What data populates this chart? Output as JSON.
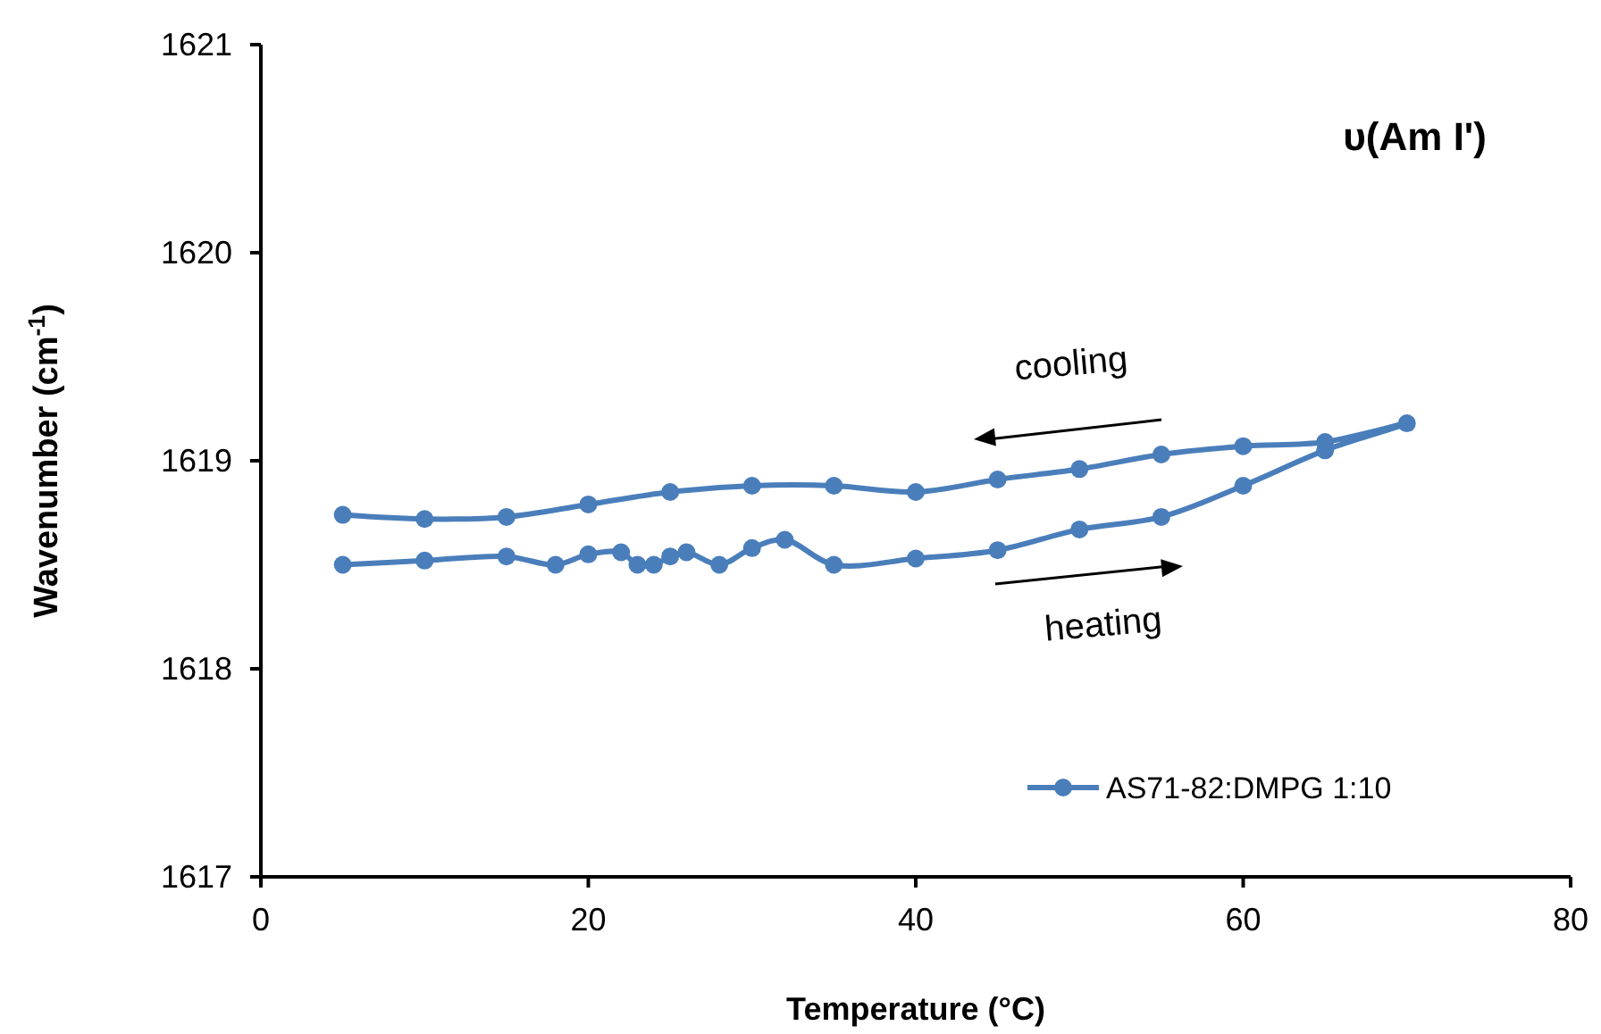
{
  "chart_data": {
    "type": "line",
    "title": "υ(Am I')",
    "xlabel": "Temperature (°C)",
    "ylabel": "Wavenumber (cm$^{-1}$)",
    "xlim": [
      0,
      80
    ],
    "xticks": [
      0,
      20,
      40,
      60,
      80
    ],
    "ylim": [
      1617,
      1621
    ],
    "yticks": [
      1617,
      1618,
      1619,
      1620,
      1621
    ],
    "grid": false,
    "legend": "bottom right",
    "marker": "circle",
    "line_style": "solid",
    "annotations": [
      "cooling",
      "heating"
    ],
    "series": [
      {
        "name": "AS71-82:DMPG 1:10",
        "color": "#4a7ebb",
        "x": [
          5,
          10,
          15,
          18,
          20,
          22,
          23,
          24,
          25,
          26,
          28,
          30,
          32,
          35,
          40,
          45,
          50,
          55,
          60,
          65,
          70,
          65,
          60,
          55,
          50,
          45,
          40,
          35,
          30,
          25,
          20,
          15,
          10,
          5
        ],
        "values": [
          1618.5,
          1618.52,
          1618.54,
          1618.5,
          1618.55,
          1618.56,
          1618.5,
          1618.5,
          1618.54,
          1618.56,
          1618.5,
          1618.58,
          1618.62,
          1618.5,
          1618.53,
          1618.57,
          1618.67,
          1618.73,
          1618.88,
          1619.05,
          1619.18,
          1619.09,
          1619.07,
          1619.03,
          1618.96,
          1618.91,
          1618.85,
          1618.88,
          1618.88,
          1618.85,
          1618.79,
          1618.73,
          1618.72,
          1618.74
        ]
      }
    ]
  }
}
